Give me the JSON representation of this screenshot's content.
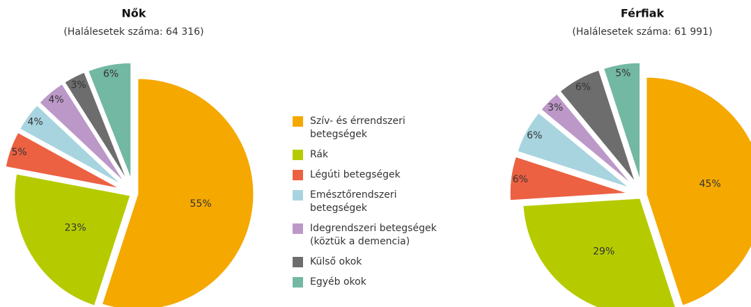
{
  "chart_data": [
    {
      "type": "pie",
      "title": "Nők",
      "subtitle": "(Halálesetek száma: 64 316)",
      "values": [
        55,
        23,
        5,
        4,
        4,
        3,
        6
      ],
      "value_labels": [
        "55%",
        "23%",
        "5%",
        "4%",
        "4%",
        "3%",
        "6%"
      ]
    },
    {
      "type": "pie",
      "title": "Férfiak",
      "subtitle": "(Halálesetek száma: 61 991)",
      "values": [
        45,
        29,
        6,
        6,
        3,
        6,
        5
      ],
      "value_labels": [
        "45%",
        "29%",
        "6%",
        "6%",
        "3%",
        "6%",
        "5%"
      ]
    }
  ],
  "legend": {
    "labels": [
      "Szív- és érrendszeri betegségek",
      "Rák",
      "Légúti betegségek",
      "Emésztőrendszeri betegségek",
      "Idegrendszeri betegségek (köztük a demencia)",
      "Külső okok",
      "Egyéb okok"
    ],
    "colors": [
      "#f5a800",
      "#b5cb00",
      "#ec6142",
      "#a7d4df",
      "#bc98c8",
      "#6d6d6d",
      "#72b8a2"
    ]
  }
}
